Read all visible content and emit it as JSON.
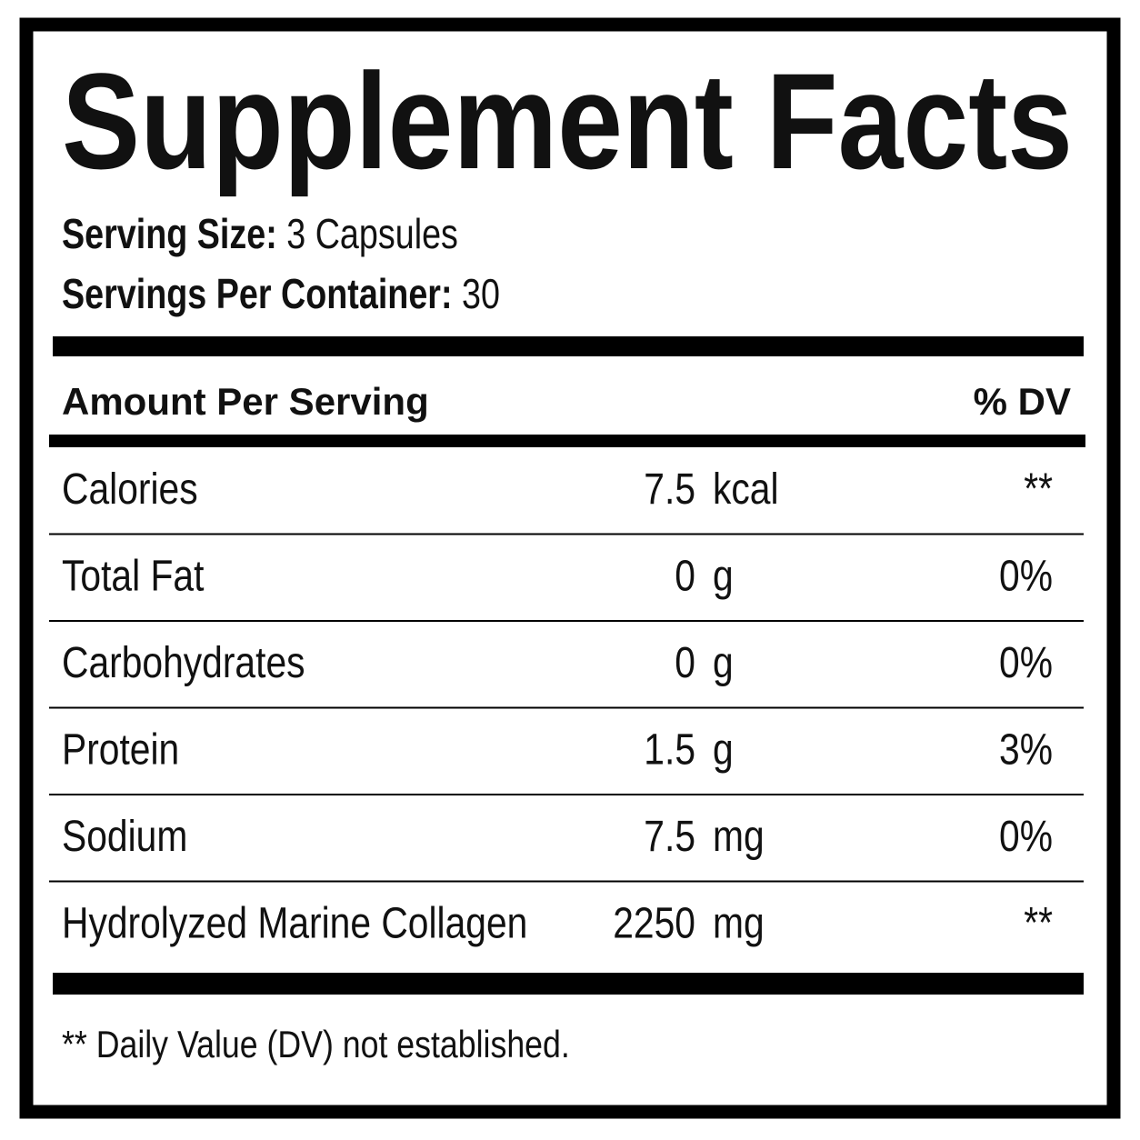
{
  "title": "Supplement Facts",
  "serving_size": {
    "label": "Serving Size:",
    "value": "3 Capsules"
  },
  "servings_per_container": {
    "label": "Servings Per Container:",
    "value": "30"
  },
  "header": {
    "amount": "Amount Per Serving",
    "dv": "% DV"
  },
  "rows": [
    {
      "name": "Calories",
      "amount": "7.5",
      "unit": "kcal",
      "dv": "**"
    },
    {
      "name": "Total Fat",
      "amount": "0",
      "unit": "g",
      "dv": "0%"
    },
    {
      "name": "Carbohydrates",
      "amount": "0",
      "unit": "g",
      "dv": "0%"
    },
    {
      "name": "Protein",
      "amount": "1.5",
      "unit": "g",
      "dv": "3%"
    },
    {
      "name": "Sodium",
      "amount": "7.5",
      "unit": "mg",
      "dv": "0%"
    },
    {
      "name": "Hydrolyzed Marine Collagen",
      "amount": "2250",
      "unit": "mg",
      "dv": "**"
    }
  ],
  "footnote": "** Daily Value (DV) not established."
}
